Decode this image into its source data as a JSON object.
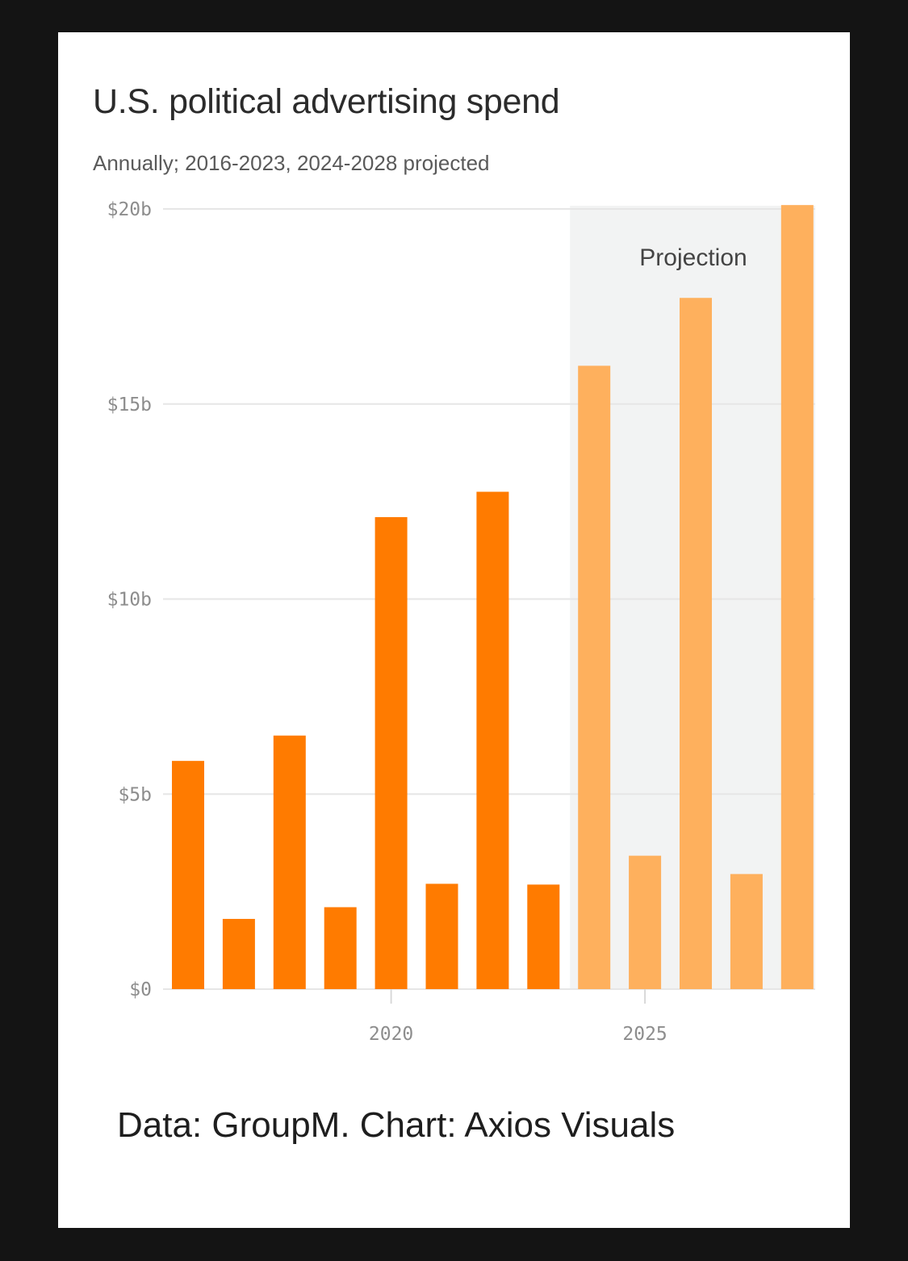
{
  "chart_data": {
    "type": "bar",
    "title": "U.S. political advertising spend",
    "subtitle": "Annually; 2016-2023, 2024-2028 projected",
    "x": [
      2016,
      2017,
      2018,
      2019,
      2020,
      2021,
      2022,
      2023,
      2024,
      2025,
      2026,
      2027,
      2028
    ],
    "values": [
      5.85,
      1.8,
      6.5,
      2.1,
      12.1,
      2.7,
      12.75,
      2.68,
      15.98,
      3.42,
      17.72,
      2.95,
      20.1
    ],
    "projected_from": 2024,
    "ylim": [
      0,
      20
    ],
    "y_ticks": [
      {
        "value": 0,
        "label": "$0"
      },
      {
        "value": 5,
        "label": "$5b"
      },
      {
        "value": 10,
        "label": "$10b"
      },
      {
        "value": 15,
        "label": "$15b"
      },
      {
        "value": 20,
        "label": "$20b"
      }
    ],
    "x_ticks": [
      {
        "value": 2020,
        "label": "2020"
      },
      {
        "value": 2025,
        "label": "2025"
      }
    ],
    "annotation": "Projection",
    "grid": true,
    "colors": {
      "actual": "#ff7b00",
      "projected": "#feb05d",
      "projection_band": "#f2f3f3",
      "grid": "#e6e6e6"
    }
  },
  "source": "Data: GroupM. Chart: Axios Visuals"
}
